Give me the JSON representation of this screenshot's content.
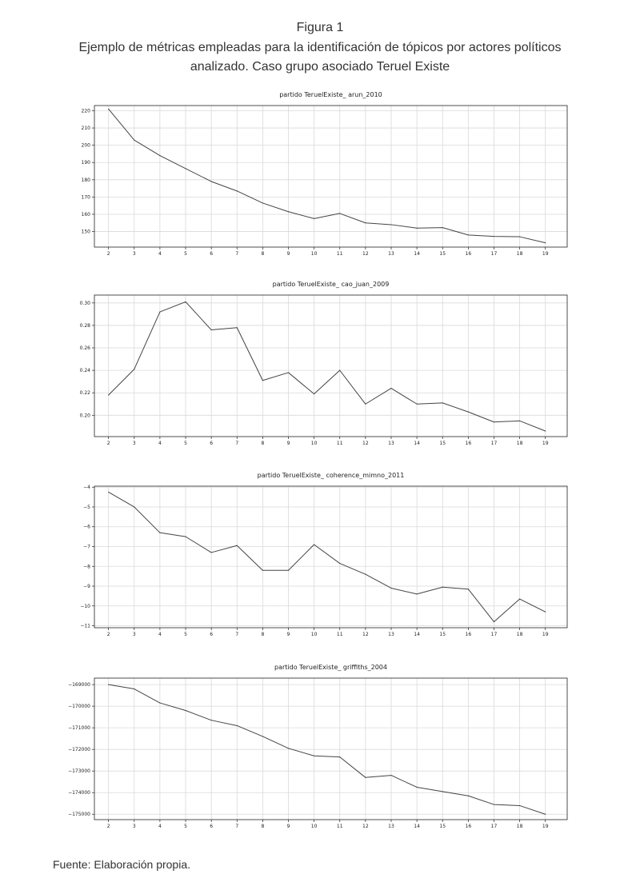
{
  "figure": {
    "number": "Figura 1",
    "caption": "Ejemplo de métricas empleadas para la identificación de tópicos por actores políticos analizado. Caso grupo asociado Teruel Existe",
    "source": "Fuente: Elaboración propia."
  },
  "chart_data": [
    {
      "type": "line",
      "title": "partido TeruelExiste_ arun_2010",
      "x": [
        2,
        3,
        4,
        5,
        6,
        7,
        8,
        9,
        10,
        11,
        12,
        13,
        14,
        15,
        16,
        17,
        18,
        19
      ],
      "x_ticks": [
        "2",
        "3",
        "4",
        "5",
        "6",
        "7",
        "8",
        "9",
        "10",
        "11",
        "12",
        "13",
        "14",
        "15",
        "16",
        "17",
        "18",
        "19"
      ],
      "y": [
        221,
        203,
        194,
        186.5,
        179,
        173.5,
        166.5,
        161.5,
        157.5,
        160.5,
        155,
        154,
        152,
        152.3,
        148,
        147.2,
        147,
        143.5
      ],
      "ylim": [
        141,
        223
      ],
      "y_ticks": [
        150,
        160,
        170,
        180,
        190,
        200,
        210,
        220
      ],
      "y_tick_labels": [
        "150",
        "160",
        "170",
        "180",
        "190",
        "200",
        "210",
        "220"
      ],
      "grid": true
    },
    {
      "type": "line",
      "title": "partido TeruelExiste_ cao_juan_2009",
      "x": [
        2,
        3,
        4,
        5,
        6,
        7,
        8,
        9,
        10,
        11,
        12,
        13,
        14,
        15,
        16,
        17,
        18,
        19
      ],
      "x_ticks": [
        "2",
        "3",
        "4",
        "5",
        "6",
        "7",
        "8",
        "9",
        "10",
        "11",
        "12",
        "13",
        "14",
        "15",
        "16",
        "17",
        "18",
        "19"
      ],
      "y": [
        0.218,
        0.241,
        0.292,
        0.301,
        0.276,
        0.278,
        0.231,
        0.238,
        0.219,
        0.24,
        0.21,
        0.224,
        0.21,
        0.211,
        0.203,
        0.194,
        0.195,
        0.186
      ],
      "ylim": [
        0.181,
        0.307
      ],
      "y_ticks": [
        0.2,
        0.22,
        0.24,
        0.26,
        0.28,
        0.3
      ],
      "y_tick_labels": [
        "0.20",
        "0.22",
        "0.24",
        "0.26",
        "0.28",
        "0.30"
      ],
      "grid": true
    },
    {
      "type": "line",
      "title": "partido TeruelExiste_ coherence_mimno_2011",
      "x": [
        2,
        3,
        4,
        5,
        6,
        7,
        8,
        9,
        10,
        11,
        12,
        13,
        14,
        15,
        16,
        17,
        18,
        19
      ],
      "x_ticks": [
        "2",
        "3",
        "4",
        "5",
        "6",
        "7",
        "8",
        "9",
        "10",
        "11",
        "12",
        "13",
        "14",
        "15",
        "16",
        "17",
        "18",
        "19"
      ],
      "y": [
        -4.25,
        -5.0,
        -6.3,
        -6.5,
        -7.3,
        -6.95,
        -8.2,
        -8.2,
        -6.9,
        -7.85,
        -8.4,
        -9.1,
        -9.4,
        -9.05,
        -9.15,
        -10.8,
        -9.65,
        -10.3
      ],
      "ylim": [
        -11.1,
        -3.95
      ],
      "y_ticks": [
        -11,
        -10,
        -9,
        -8,
        -7,
        -6,
        -5,
        -4
      ],
      "y_tick_labels": [
        "−11",
        "−10",
        "−9",
        "−8",
        "−7",
        "−6",
        "−5",
        "−4"
      ],
      "grid": true
    },
    {
      "type": "line",
      "title": "partido TeruelExiste_ griffiths_2004",
      "x": [
        2,
        3,
        4,
        5,
        6,
        7,
        8,
        9,
        10,
        11,
        12,
        13,
        14,
        15,
        16,
        17,
        18,
        19
      ],
      "x_ticks": [
        "2",
        "3",
        "4",
        "5",
        "6",
        "7",
        "8",
        "9",
        "10",
        "11",
        "12",
        "13",
        "14",
        "15",
        "16",
        "17",
        "18",
        "19"
      ],
      "y": [
        -169000,
        -169200,
        -169850,
        -170200,
        -170650,
        -170900,
        -171400,
        -171950,
        -172300,
        -172350,
        -173300,
        -173200,
        -173750,
        -173950,
        -174150,
        -174550,
        -174600,
        -175000
      ],
      "ylim": [
        -175250,
        -168700
      ],
      "y_ticks": [
        -175000,
        -174000,
        -173000,
        -172000,
        -171000,
        -170000,
        -169000
      ],
      "y_tick_labels": [
        "−175000",
        "−174000",
        "−173000",
        "−172000",
        "−171000",
        "−170000",
        "−169000"
      ],
      "grid": true
    }
  ]
}
